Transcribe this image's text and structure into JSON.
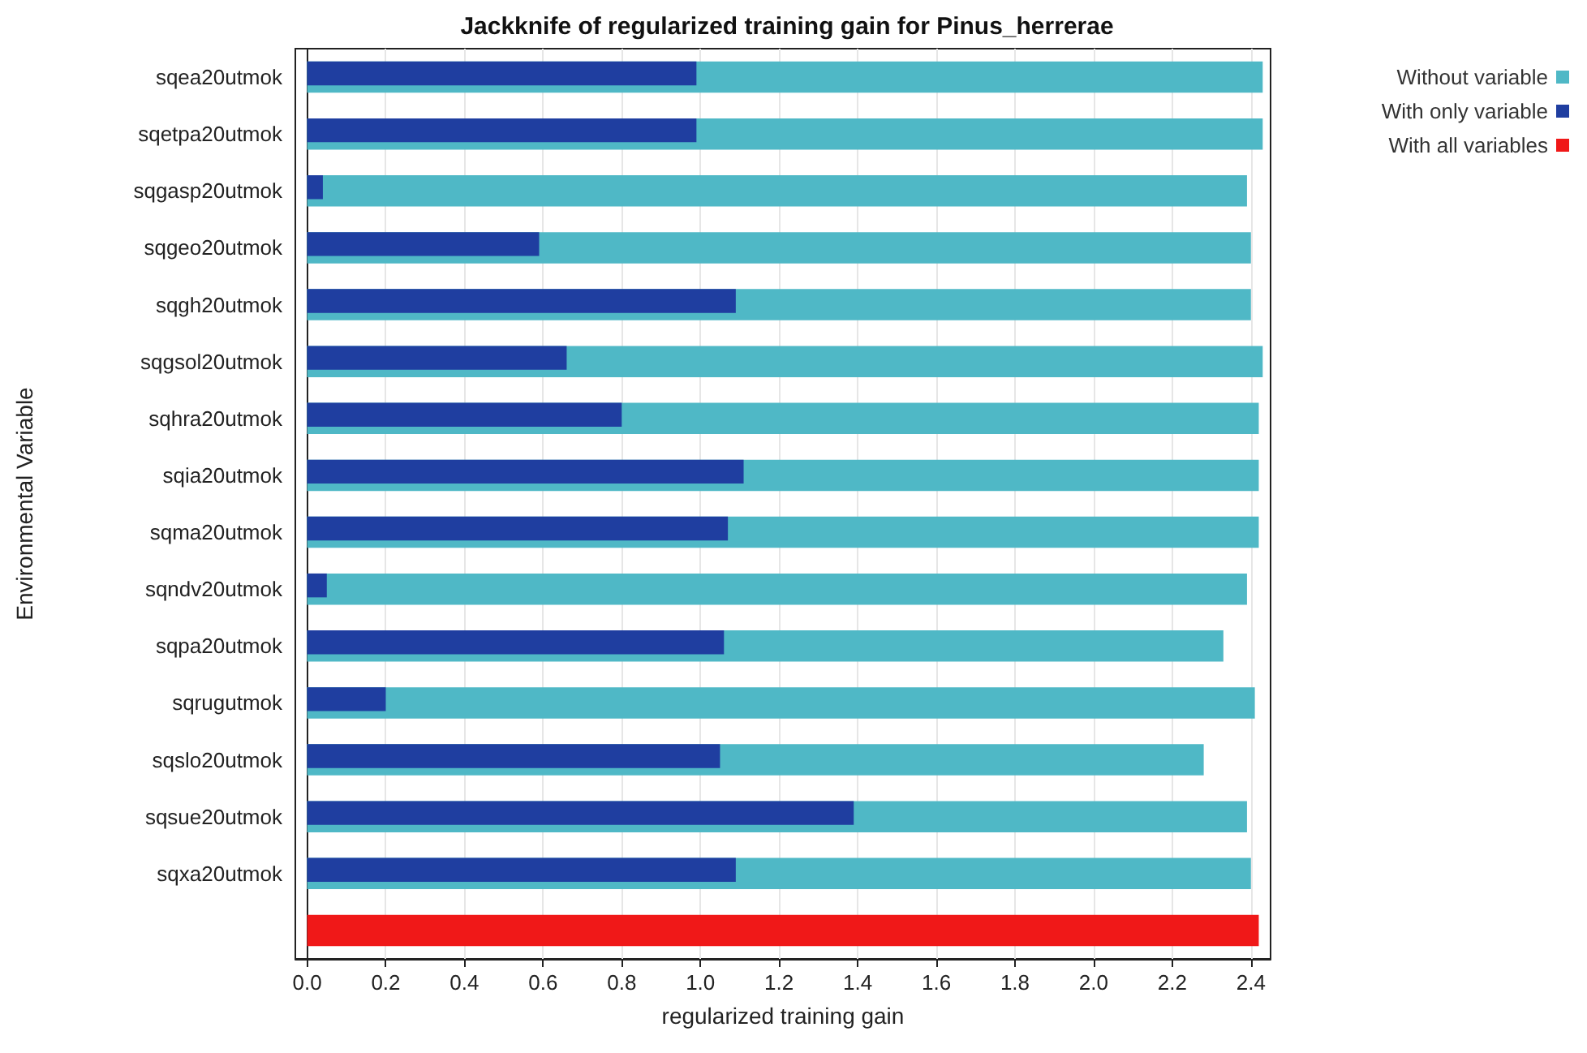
{
  "chart_data": {
    "type": "bar",
    "orientation": "horizontal",
    "title": "Jackknife of regularized training gain for Pinus_herrerae",
    "xlabel": "regularized training gain",
    "ylabel": "Environmental Variable",
    "categories": [
      "sqea20utmok",
      "sqetpa20utmok",
      "sqgasp20utmok",
      "sqgeo20utmok",
      "sqgh20utmok",
      "sqgsol20utmok",
      "sqhra20utmok",
      "sqia20utmok",
      "sqma20utmok",
      "sqndv20utmok",
      "sqpa20utmok",
      "sqrugutmok",
      "sqslo20utmok",
      "sqsue20utmok",
      "sqxa20utmok",
      null
    ],
    "series": [
      {
        "name": "Without variable",
        "color": "#4fb8c6",
        "values": [
          2.43,
          2.43,
          2.39,
          2.4,
          2.4,
          2.43,
          2.42,
          2.42,
          2.42,
          2.39,
          2.33,
          2.41,
          2.28,
          2.39,
          2.4,
          null
        ]
      },
      {
        "name": "With only variable",
        "color": "#1f3ea0",
        "values": [
          0.99,
          0.99,
          0.04,
          0.59,
          1.09,
          0.66,
          0.8,
          1.11,
          1.07,
          0.05,
          1.06,
          0.2,
          1.05,
          1.39,
          1.09,
          null
        ]
      },
      {
        "name": "With all variables",
        "color": "#f01818",
        "values": [
          null,
          null,
          null,
          null,
          null,
          null,
          null,
          null,
          null,
          null,
          null,
          null,
          null,
          null,
          null,
          2.42
        ]
      }
    ],
    "xlim": [
      -0.03,
      2.45
    ],
    "xticks": [
      {
        "value": 0,
        "label": "0.0"
      },
      0.2,
      0.4,
      0.6,
      0.8,
      {
        "value": 1,
        "label": "1.0"
      },
      1.2,
      1.4,
      1.6,
      1.8,
      {
        "value": 2,
        "label": "2.0"
      },
      2.2,
      2.4
    ],
    "grid": "x",
    "legend": "top right"
  }
}
